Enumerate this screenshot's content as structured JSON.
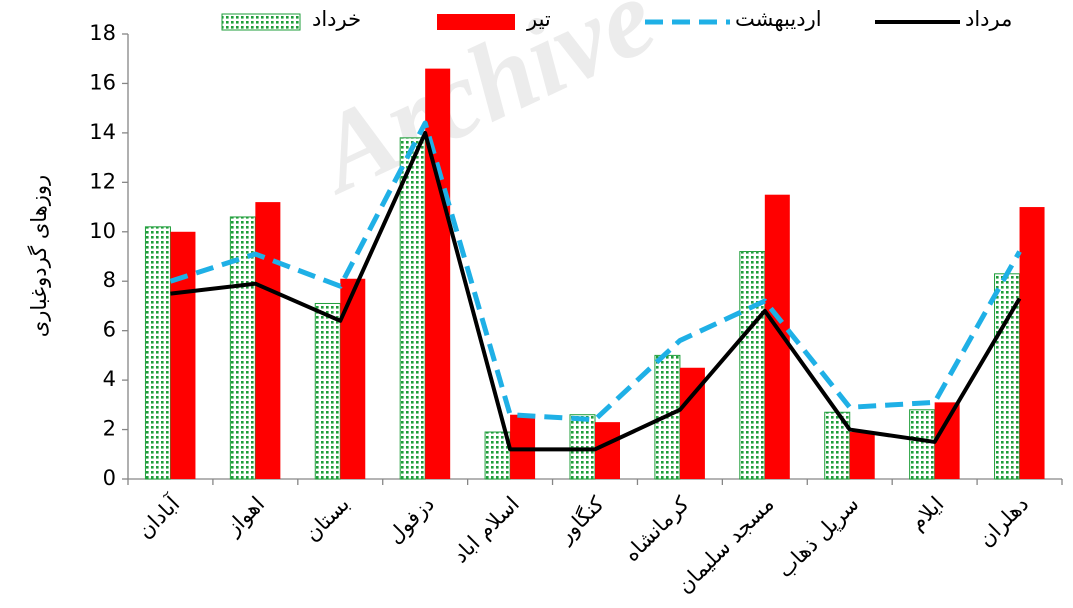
{
  "chart_data": {
    "type": "bar-line",
    "watermark": "Archive",
    "y_label": "روزهای گردوغباری",
    "categories": [
      "آبادان",
      "اهواز",
      "بستان",
      "دزفول",
      "اسلام اباد",
      "کنگاور",
      "کرمانشاه",
      "مسجد سلیمان",
      "سرپل ذهاب",
      "ایلام",
      "دهلران"
    ],
    "series": [
      {
        "name": "خرداد",
        "kind": "bar",
        "color": "#1e9e3a",
        "pattern": "dots",
        "values": [
          10.2,
          10.6,
          7.1,
          13.8,
          1.9,
          2.6,
          5.0,
          9.2,
          2.7,
          2.8,
          8.3
        ]
      },
      {
        "name": "تیر",
        "kind": "bar",
        "color": "#ff0000",
        "values": [
          10.0,
          11.2,
          8.1,
          16.6,
          2.6,
          2.3,
          4.5,
          11.5,
          1.9,
          3.1,
          11.0
        ]
      },
      {
        "name": "اردیبهشت",
        "kind": "line",
        "color": "#1fb0e6",
        "dashed": true,
        "values": [
          8.0,
          9.1,
          7.8,
          14.4,
          2.6,
          2.4,
          5.6,
          7.2,
          2.9,
          3.1,
          9.2
        ]
      },
      {
        "name": "مرداد",
        "kind": "line",
        "color": "#000000",
        "dashed": false,
        "values": [
          7.5,
          7.9,
          6.4,
          14.0,
          1.2,
          1.2,
          2.8,
          6.8,
          2.0,
          1.5,
          7.3
        ]
      }
    ],
    "ylim": [
      0,
      18
    ],
    "yticks": [
      0,
      2,
      4,
      6,
      8,
      10,
      12,
      14,
      16,
      18
    ],
    "legend": "top"
  }
}
